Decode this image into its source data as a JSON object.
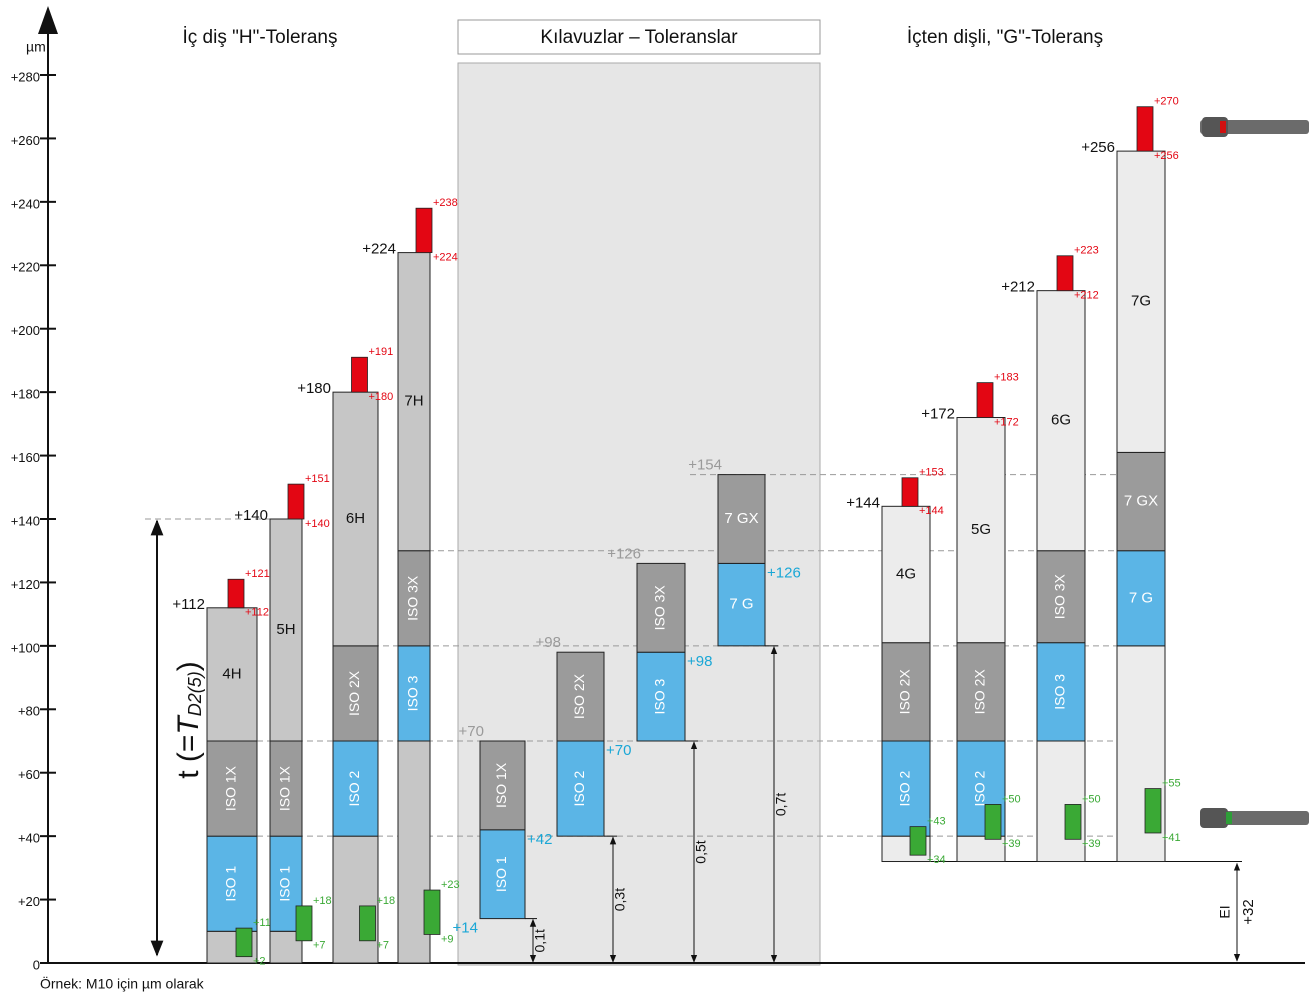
{
  "chart_data": {
    "type": "tolerance",
    "y_unit": "µm",
    "footnote": "Örnek: M10 için µm olarak",
    "ylim": [
      0,
      300
    ],
    "yticks": [
      0,
      {
        "value": 20,
        "label": "+20"
      },
      {
        "value": 40,
        "label": "+40"
      },
      {
        "value": 60,
        "label": "+60"
      },
      {
        "value": 80,
        "label": "+80"
      },
      {
        "value": 100,
        "label": "+100"
      },
      {
        "value": 120,
        "label": "+120"
      },
      {
        "value": 140,
        "label": "+140"
      },
      {
        "value": 160,
        "label": "+160"
      },
      {
        "value": 180,
        "label": "+180"
      },
      {
        "value": 200,
        "label": "+200"
      },
      {
        "value": 220,
        "label": "+220"
      },
      {
        "value": 240,
        "label": "+240"
      },
      {
        "value": 260,
        "label": "+260"
      },
      {
        "value": 280,
        "label": "+280"
      }
    ],
    "guide_lines": [
      40,
      70,
      100,
      130,
      154
    ],
    "t_dimension": {
      "value": 140,
      "prefix": "t (=",
      "symbol": "T",
      "subscript": "D2(5)",
      "suffix": ")"
    },
    "ei_dimension": {
      "name": "EI",
      "value": {
        "value": 32,
        "label": "+32"
      }
    },
    "groups": [
      {
        "title": "İç diş \"H\"-Toleranş",
        "top_color": "#111111",
        "marker_color": "#1aa7d6",
        "columns": [
          {
            "top": {
              "value": 112,
              "label": "+112"
            },
            "segments": [
              {
                "name": null,
                "from": 0,
                "to": 10,
                "color": "#c6c6c6"
              },
              {
                "name": "ISO 1",
                "from": 10,
                "to": 40,
                "color": "#5bb5e6"
              },
              {
                "name": "ISO 1X",
                "from": 40,
                "to": 70,
                "color": "#9b9b9b"
              },
              {
                "name": "4H",
                "from": 70,
                "to": 112,
                "color": "#c6c6c6"
              }
            ],
            "green": [
              {
                "value": 2,
                "label": "+2"
              },
              {
                "value": 11,
                "label": "+11"
              }
            ],
            "red": [
              {
                "value": 112,
                "label": "+112"
              },
              {
                "value": 121,
                "label": "+121"
              }
            ]
          },
          {
            "top": {
              "value": 140,
              "label": "+140"
            },
            "segments": [
              {
                "name": null,
                "from": 0,
                "to": 10,
                "color": "#c6c6c6"
              },
              {
                "name": "ISO 1",
                "from": 10,
                "to": 40,
                "color": "#5bb5e6"
              },
              {
                "name": "ISO 1X",
                "from": 40,
                "to": 70,
                "color": "#9b9b9b"
              },
              {
                "name": "5H",
                "from": 70,
                "to": 140,
                "color": "#c6c6c6"
              }
            ],
            "green": [
              {
                "value": 7,
                "label": "+7"
              },
              {
                "value": 18,
                "label": "+18"
              }
            ],
            "red": [
              {
                "value": 140,
                "label": "+140"
              },
              {
                "value": 151,
                "label": "+151"
              }
            ]
          },
          {
            "top": {
              "value": 180,
              "label": "+180"
            },
            "segments": [
              {
                "name": null,
                "from": 0,
                "to": 40,
                "color": "#c6c6c6"
              },
              {
                "name": "ISO 2",
                "from": 40,
                "to": 70,
                "color": "#5bb5e6"
              },
              {
                "name": "ISO 2X",
                "from": 70,
                "to": 100,
                "color": "#9b9b9b"
              },
              {
                "name": "6H",
                "from": 100,
                "to": 180,
                "color": "#c6c6c6"
              }
            ],
            "green": [
              {
                "value": 7,
                "label": "+7"
              },
              {
                "value": 18,
                "label": "+18"
              }
            ],
            "red": [
              {
                "value": 180,
                "label": "+180"
              },
              {
                "value": 191,
                "label": "+191"
              }
            ]
          },
          {
            "top": {
              "value": 224,
              "label": "+224"
            },
            "segments": [
              {
                "name": null,
                "from": 0,
                "to": 70,
                "color": "#c6c6c6"
              },
              {
                "name": "ISO 3",
                "from": 70,
                "to": 100,
                "color": "#5bb5e6"
              },
              {
                "name": "ISO 3X",
                "from": 100,
                "to": 130,
                "color": "#9b9b9b"
              },
              {
                "name": "7H",
                "from": 130,
                "to": 224,
                "color": "#c6c6c6"
              }
            ],
            "green": [
              {
                "value": 9,
                "label": "+9"
              },
              {
                "value": 23,
                "label": "+23"
              }
            ],
            "red": [
              {
                "value": 224,
                "label": "+224"
              },
              {
                "value": 238,
                "label": "+238"
              }
            ]
          }
        ]
      },
      {
        "title": "Kılavuzlar – Toleranslar",
        "top_color": "#9a9a9a",
        "marker_color": "#1aa7d6",
        "columns": [
          {
            "top": {
              "value": 70,
              "label": "+70"
            },
            "segments": [
              {
                "name": "ISO 1",
                "from": 14,
                "to": 42,
                "color": "#5bb5e6"
              },
              {
                "name": "ISO 1X",
                "from": 42,
                "to": 70,
                "color": "#9b9b9b"
              }
            ],
            "markers": [
              {
                "value": 14,
                "label": "+14"
              },
              {
                "value": 42,
                "label": "+42"
              }
            ],
            "dimension": "0,1t"
          },
          {
            "top": {
              "value": 98,
              "label": "+98"
            },
            "segments": [
              {
                "name": "ISO 2",
                "from": 40,
                "to": 70,
                "color": "#5bb5e6"
              },
              {
                "name": "ISO 2X",
                "from": 70,
                "to": 98,
                "color": "#9b9b9b"
              }
            ],
            "markers": [
              {
                "value": 70,
                "label": "+70"
              }
            ],
            "dimension": "0,3t"
          },
          {
            "top": {
              "value": 126,
              "label": "+126"
            },
            "segments": [
              {
                "name": "ISO 3",
                "from": 70,
                "to": 98,
                "color": "#5bb5e6"
              },
              {
                "name": "ISO 3X",
                "from": 98,
                "to": 126,
                "color": "#9b9b9b"
              }
            ],
            "markers": [
              {
                "value": 98,
                "label": "+98"
              }
            ],
            "dimension": "0,5t"
          },
          {
            "top": {
              "value": 154,
              "label": "+154"
            },
            "segments": [
              {
                "name": "7 G",
                "from": 100,
                "to": 126,
                "color": "#5bb5e6"
              },
              {
                "name": "7 GX",
                "from": 126,
                "to": 154,
                "color": "#9b9b9b"
              }
            ],
            "markers": [
              {
                "value": 126,
                "label": "+126"
              }
            ],
            "dimension": "0,7t"
          }
        ]
      },
      {
        "title": "İçten dişli, \"G\"-Toleranş",
        "top_color": "#111111",
        "marker_color": "#1aa7d6",
        "columns": [
          {
            "top": {
              "value": 144,
              "label": "+144"
            },
            "segments": [
              {
                "name": null,
                "from": 32,
                "to": 40,
                "color": "#ececec"
              },
              {
                "name": "ISO 2",
                "from": 40,
                "to": 70,
                "color": "#5bb5e6"
              },
              {
                "name": "ISO 2X",
                "from": 70,
                "to": 101,
                "color": "#9b9b9b"
              },
              {
                "name": "4G",
                "from": 101,
                "to": 144,
                "color": "#ececec"
              }
            ],
            "green": [
              {
                "value": 34,
                "label": "+34"
              },
              {
                "value": 43,
                "label": "+43"
              }
            ],
            "red": [
              {
                "value": 144,
                "label": "+144"
              },
              {
                "value": 153,
                "label": "+153"
              }
            ]
          },
          {
            "top": {
              "value": 172,
              "label": "+172"
            },
            "segments": [
              {
                "name": null,
                "from": 32,
                "to": 40,
                "color": "#ececec"
              },
              {
                "name": "ISO 2",
                "from": 40,
                "to": 70,
                "color": "#5bb5e6"
              },
              {
                "name": "ISO 2X",
                "from": 70,
                "to": 101,
                "color": "#9b9b9b"
              },
              {
                "name": "5G",
                "from": 101,
                "to": 172,
                "color": "#ececec"
              }
            ],
            "green": [
              {
                "value": 39,
                "label": "+39"
              },
              {
                "value": 50,
                "label": "+50"
              }
            ],
            "red": [
              {
                "value": 172,
                "label": "+172"
              },
              {
                "value": 183,
                "label": "+183"
              }
            ]
          },
          {
            "top": {
              "value": 212,
              "label": "+212"
            },
            "segments": [
              {
                "name": null,
                "from": 32,
                "to": 70,
                "color": "#ececec"
              },
              {
                "name": "ISO 3",
                "from": 70,
                "to": 101,
                "color": "#5bb5e6"
              },
              {
                "name": "ISO 3X",
                "from": 101,
                "to": 130,
                "color": "#9b9b9b"
              },
              {
                "name": "6G",
                "from": 130,
                "to": 212,
                "color": "#ececec"
              }
            ],
            "green": [
              {
                "value": 39,
                "label": "+39"
              },
              {
                "value": 50,
                "label": "+50"
              }
            ],
            "red": [
              {
                "value": 212,
                "label": "+212"
              },
              {
                "value": 223,
                "label": "+223"
              }
            ]
          },
          {
            "top": {
              "value": 256,
              "label": "+256"
            },
            "segments": [
              {
                "name": null,
                "from": 32,
                "to": 100,
                "color": "#ececec"
              },
              {
                "name": "7 G",
                "from": 100,
                "to": 130,
                "color": "#5bb5e6"
              },
              {
                "name": "7 GX",
                "from": 130,
                "to": 161,
                "color": "#9b9b9b"
              },
              {
                "name": "7G",
                "from": 161,
                "to": 256,
                "color": "#ececec"
              }
            ],
            "green": [
              {
                "value": 41,
                "label": "+41"
              },
              {
                "value": 55,
                "label": "+55"
              }
            ],
            "red": [
              {
                "value": 256,
                "label": "+256"
              },
              {
                "value": 270,
                "label": "+270"
              }
            ]
          }
        ]
      }
    ]
  }
}
